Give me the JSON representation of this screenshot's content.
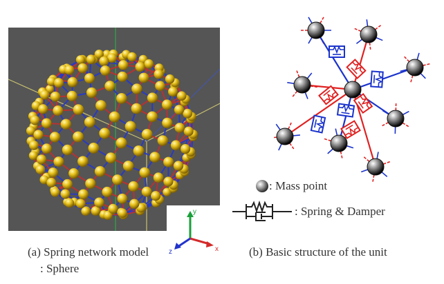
{
  "figure": {
    "panel_a": {
      "caption_line1": "(a) Spring network model",
      "caption_line2": ": Sphere",
      "axes": {
        "y_label": "y",
        "z_label": "z",
        "x_label": "x"
      },
      "colors": {
        "background": "#555555",
        "mass": "#e8c21c",
        "spring_red": "#b83232",
        "spring_blue": "#2a3bbf"
      }
    },
    "panel_b": {
      "caption": "(b) Basic structure of the unit",
      "colors": {
        "spring_red": "#e02020",
        "spring_blue": "#1a33cc",
        "mass": "#333333"
      }
    },
    "legend": {
      "mass_label": ": Mass point",
      "spring_label": ": Spring & Damper"
    }
  }
}
